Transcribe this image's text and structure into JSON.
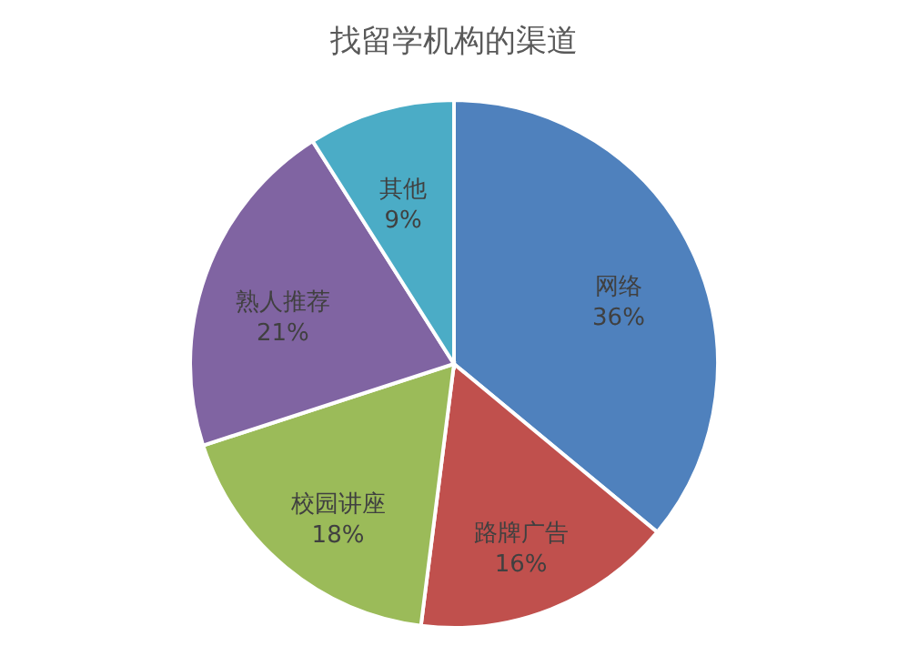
{
  "chart_data": {
    "type": "pie",
    "title": "找留学机构的渠道",
    "categories": [
      "网络",
      "路牌广告",
      "校园讲座",
      "熟人推荐",
      "其他"
    ],
    "values": [
      36,
      16,
      18,
      21,
      9
    ],
    "value_labels": [
      "36%",
      "16%",
      "18%",
      "21%",
      "9%"
    ],
    "colors": [
      "#4f81bd",
      "#c0504d",
      "#9bbb59",
      "#8064a2",
      "#4bacc6"
    ],
    "legend": false
  }
}
